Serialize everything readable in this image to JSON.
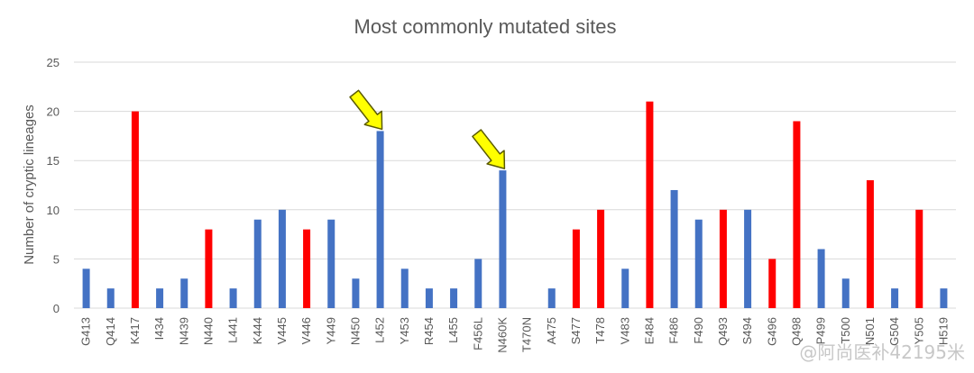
{
  "chart_data": {
    "type": "bar",
    "title": "Most commonly mutated sites",
    "xlabel": "",
    "ylabel": "Number of cryptic lineages",
    "ylim": [
      0,
      25
    ],
    "yticks": [
      0,
      5,
      10,
      15,
      20,
      25
    ],
    "grid": true,
    "categories": [
      "G413",
      "Q414",
      "K417",
      "I434",
      "N439",
      "N440",
      "L441",
      "K444",
      "V445",
      "V446",
      "Y449",
      "N450",
      "L452",
      "Y453",
      "R454",
      "L455",
      "F456L",
      "N460K",
      "T470N",
      "A475",
      "S477",
      "T478",
      "V483",
      "E484",
      "F486",
      "F490",
      "Q493",
      "S494",
      "G496",
      "Q498",
      "P499",
      "T500",
      "N501",
      "G504",
      "Y505",
      "H519"
    ],
    "values": [
      4,
      2,
      20,
      2,
      3,
      8,
      2,
      9,
      10,
      8,
      9,
      3,
      18,
      4,
      2,
      2,
      5,
      14,
      0,
      2,
      8,
      10,
      4,
      21,
      12,
      9,
      10,
      10,
      5,
      19,
      6,
      3,
      13,
      2,
      10,
      2
    ],
    "colors": [
      "#4472c4",
      "#4472c4",
      "#ff0000",
      "#4472c4",
      "#4472c4",
      "#ff0000",
      "#4472c4",
      "#4472c4",
      "#4472c4",
      "#ff0000",
      "#4472c4",
      "#4472c4",
      "#4472c4",
      "#4472c4",
      "#4472c4",
      "#4472c4",
      "#4472c4",
      "#4472c4",
      "#4472c4",
      "#4472c4",
      "#ff0000",
      "#ff0000",
      "#4472c4",
      "#ff0000",
      "#4472c4",
      "#4472c4",
      "#ff0000",
      "#4472c4",
      "#ff0000",
      "#ff0000",
      "#4472c4",
      "#4472c4",
      "#ff0000",
      "#4472c4",
      "#ff0000",
      "#4472c4"
    ],
    "annotations": [
      {
        "type": "arrow",
        "target_category": "L452",
        "color": "#ffff00"
      },
      {
        "type": "arrow",
        "target_category": "N460K",
        "color": "#ffff00"
      }
    ]
  },
  "watermark": "@阿尚医补42195米"
}
